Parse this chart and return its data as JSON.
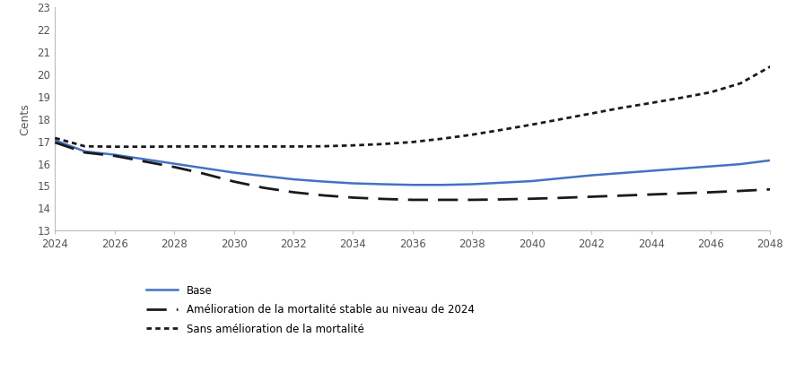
{
  "years": [
    2024,
    2025,
    2026,
    2027,
    2028,
    2029,
    2030,
    2031,
    2032,
    2033,
    2034,
    2035,
    2036,
    2037,
    2038,
    2039,
    2040,
    2041,
    2042,
    2043,
    2044,
    2045,
    2046,
    2047,
    2048
  ],
  "base": [
    17.05,
    16.55,
    16.4,
    16.2,
    16.0,
    15.8,
    15.6,
    15.45,
    15.3,
    15.2,
    15.12,
    15.08,
    15.05,
    15.05,
    15.08,
    15.15,
    15.22,
    15.35,
    15.48,
    15.58,
    15.68,
    15.78,
    15.88,
    15.98,
    16.15
  ],
  "stable_2024": [
    16.95,
    16.5,
    16.35,
    16.1,
    15.85,
    15.55,
    15.2,
    14.92,
    14.72,
    14.58,
    14.48,
    14.42,
    14.38,
    14.38,
    14.38,
    14.4,
    14.43,
    14.47,
    14.52,
    14.57,
    14.62,
    14.67,
    14.72,
    14.78,
    14.85
  ],
  "no_improvement": [
    17.15,
    16.78,
    16.76,
    16.76,
    16.77,
    16.77,
    16.77,
    16.77,
    16.77,
    16.78,
    16.82,
    16.88,
    16.97,
    17.12,
    17.3,
    17.52,
    17.75,
    18.0,
    18.25,
    18.5,
    18.72,
    18.95,
    19.2,
    19.6,
    20.35
  ],
  "base_color": "#4472C4",
  "stable_color": "#1a1a1a",
  "no_improvement_color": "#1a1a1a",
  "ylabel": "Cents",
  "ylim": [
    13,
    23
  ],
  "yticks": [
    13,
    14,
    15,
    16,
    17,
    18,
    19,
    20,
    21,
    22,
    23
  ],
  "xlim": [
    2024,
    2048
  ],
  "xticks": [
    2024,
    2026,
    2028,
    2030,
    2032,
    2034,
    2036,
    2038,
    2040,
    2042,
    2044,
    2046,
    2048
  ],
  "legend_base": "Base",
  "legend_stable": "Amélioration de la mortalité stable au niveau de 2024",
  "legend_no_imp": "Sans amélioration de la mortalité",
  "background_color": "#ffffff",
  "base_linewidth": 1.8,
  "other_linewidth": 2.0
}
